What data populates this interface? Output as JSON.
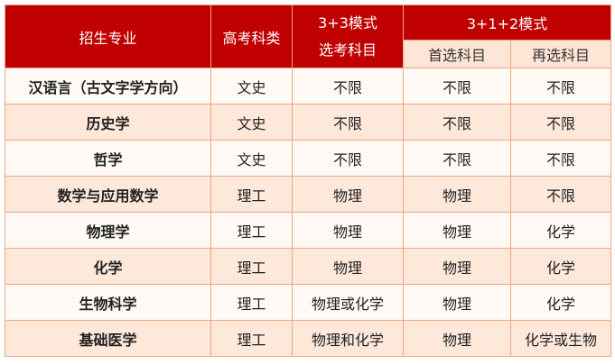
{
  "header": {
    "major": "招生专业",
    "category": "高考科类",
    "mode33_top": "3+3模式",
    "mode33_bottom": "选考科目",
    "mode312": "3+1+2模式",
    "first_choice": "首选科目",
    "second_choice": "再选科目"
  },
  "colors": {
    "header": "#c00000",
    "border": "#eda77e",
    "row_alt": "#fde8da"
  },
  "rows": [
    {
      "major": "汉语言（古文字学方向）",
      "category": "文史",
      "mode33": "不限",
      "first": "不限",
      "second": "不限"
    },
    {
      "major": "历史学",
      "category": "文史",
      "mode33": "不限",
      "first": "不限",
      "second": "不限"
    },
    {
      "major": "哲学",
      "category": "文史",
      "mode33": "不限",
      "first": "不限",
      "second": "不限"
    },
    {
      "major": "数学与应用数学",
      "category": "理工",
      "mode33": "物理",
      "first": "物理",
      "second": "不限"
    },
    {
      "major": "物理学",
      "category": "理工",
      "mode33": "物理",
      "first": "物理",
      "second": "化学"
    },
    {
      "major": "化学",
      "category": "理工",
      "mode33": "物理",
      "first": "物理",
      "second": "化学"
    },
    {
      "major": "生物科学",
      "category": "理工",
      "mode33": "物理或化学",
      "first": "物理",
      "second": "化学"
    },
    {
      "major": "基础医学",
      "category": "理工",
      "mode33": "物理和化学",
      "first": "物理",
      "second": "化学或生物"
    }
  ]
}
